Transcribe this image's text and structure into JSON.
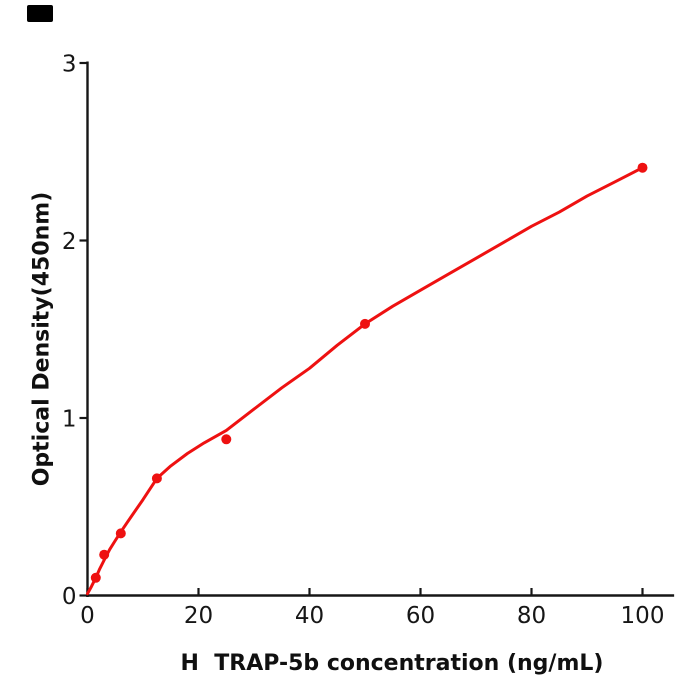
{
  "corner_mark": {
    "color": "#000000"
  },
  "colors": {
    "background": "#ffffff",
    "axis": "#161616",
    "text": "#101010",
    "curve": "#ee1111",
    "marker": "#ee1111"
  },
  "chart_data": {
    "type": "scatter",
    "title": "",
    "xlabel": "H  TRAP-5b concentration (ng/mL)",
    "ylabel": "Optical Density(450nm)",
    "x_ticks": [
      0,
      20,
      40,
      60,
      80,
      100
    ],
    "y_ticks": [
      0,
      1,
      2,
      3
    ],
    "xlim": [
      0,
      105.7
    ],
    "ylim": [
      0,
      3
    ],
    "grid": false,
    "legend_position": "none",
    "x_tick_direction": "in",
    "y_tick_direction": "out",
    "points": [
      [
        1.5,
        0.1
      ],
      [
        3,
        0.23
      ],
      [
        6,
        0.35
      ],
      [
        12.5,
        0.66
      ],
      [
        25,
        0.88
      ],
      [
        50,
        1.53
      ],
      [
        100,
        2.41
      ]
    ],
    "fit_curve": [
      [
        0,
        0.01
      ],
      [
        0.7,
        0.05
      ],
      [
        1.5,
        0.1
      ],
      [
        2.2,
        0.15
      ],
      [
        3,
        0.2
      ],
      [
        4,
        0.26
      ],
      [
        5,
        0.31
      ],
      [
        6.25,
        0.37
      ],
      [
        8,
        0.45
      ],
      [
        10,
        0.54
      ],
      [
        12.5,
        0.66
      ],
      [
        15,
        0.73
      ],
      [
        18,
        0.8
      ],
      [
        21,
        0.86
      ],
      [
        25,
        0.93
      ],
      [
        30,
        1.05
      ],
      [
        35,
        1.17
      ],
      [
        40,
        1.28
      ],
      [
        45,
        1.41
      ],
      [
        50,
        1.53
      ],
      [
        55,
        1.63
      ],
      [
        60,
        1.72
      ],
      [
        65,
        1.81
      ],
      [
        70,
        1.9
      ],
      [
        75,
        1.99
      ],
      [
        80,
        2.08
      ],
      [
        85,
        2.16
      ],
      [
        90,
        2.25
      ],
      [
        95,
        2.33
      ],
      [
        100,
        2.41
      ]
    ]
  }
}
